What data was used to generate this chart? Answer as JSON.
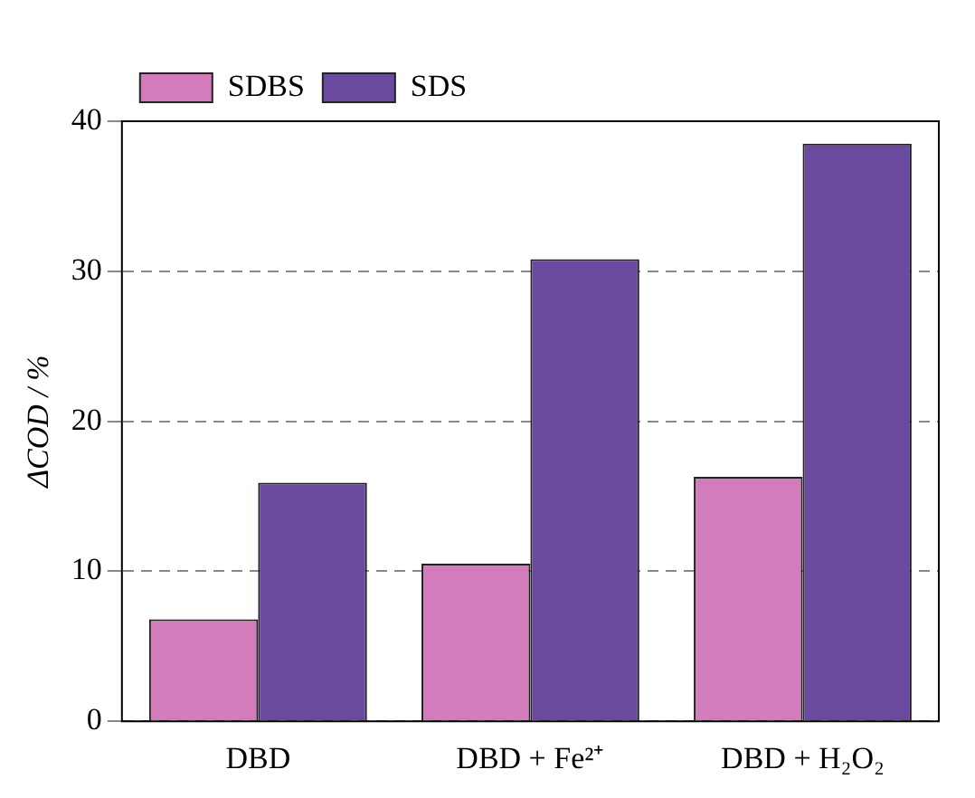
{
  "chart_data": {
    "type": "bar",
    "ylabel": "ΔCOD / %",
    "categories": [
      "DBD",
      "DBD + Fe²⁺",
      "DBD + H₂O₂"
    ],
    "series": [
      {
        "name": "SDBS",
        "color": "#d27cbc",
        "values": [
          6.8,
          10.5,
          16.3
        ]
      },
      {
        "name": "SDS",
        "color": "#6a4a9e",
        "values": [
          15.9,
          30.8,
          38.5
        ]
      }
    ],
    "ylim": [
      0,
      40
    ],
    "yticks": [
      0,
      10,
      20,
      30,
      40
    ],
    "grid": "y",
    "legend": "top left"
  }
}
